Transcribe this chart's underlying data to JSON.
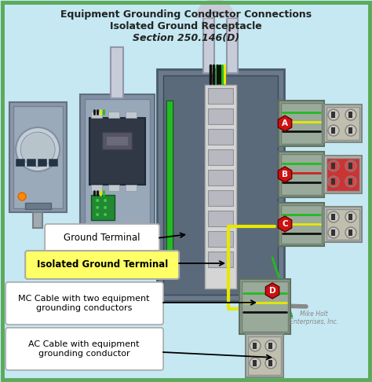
{
  "title_line1": "Equipment Grounding Conductor Connections",
  "title_line2": "Isolated Ground Receptacle",
  "title_line3": "Section 250.146(D)",
  "bg_color": "#c5e8f2",
  "border_color": "#5aaa5a",
  "label_ground_terminal": "Ground Terminal",
  "label_isolated_ground": "Isolated Ground Terminal",
  "label_mc_cable": "MC Cable with two equipment\ngrounding conductors",
  "label_ac_cable": "AC Cable with equipment\ngrounding conductor",
  "watermark1": "Mike Holt",
  "watermark2": "Enterprises, Inc.",
  "panel_outer": "#6a7a8a",
  "panel_inner": "#5a6a7a",
  "breaker_strip": "#c8c8c8",
  "meter_body": "#8898a8",
  "disc_body": "#8898a8",
  "conduit_color": "#d0d0d8",
  "wire_black": "#111111",
  "wire_green": "#22bb22",
  "wire_yellow": "#e8e800",
  "wire_red": "#cc2222",
  "wire_blue": "#2244cc",
  "wire_white": "#dddddd",
  "hex_color": "#cc1111",
  "jbox_color": "#9aaa9a",
  "receptacle_beige": "#c8c4a8",
  "receptacle_red": "#cc3333"
}
